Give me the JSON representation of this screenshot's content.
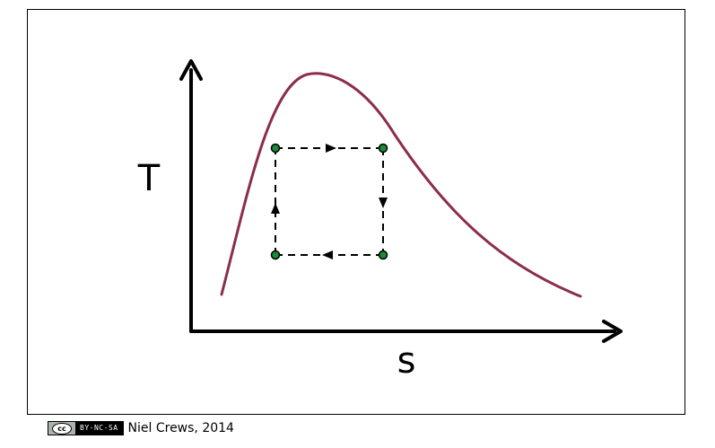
{
  "diagram": {
    "axis_y_label": "T",
    "axis_x_label": "s"
  },
  "colors": {
    "dome": "#8b2d4c",
    "state_point": "#1b8a3a",
    "axes": "#000000"
  },
  "footer": {
    "license_symbol": "cc",
    "license_terms": "BY-NC-SA",
    "credit": "Niel Crews, 2014"
  }
}
